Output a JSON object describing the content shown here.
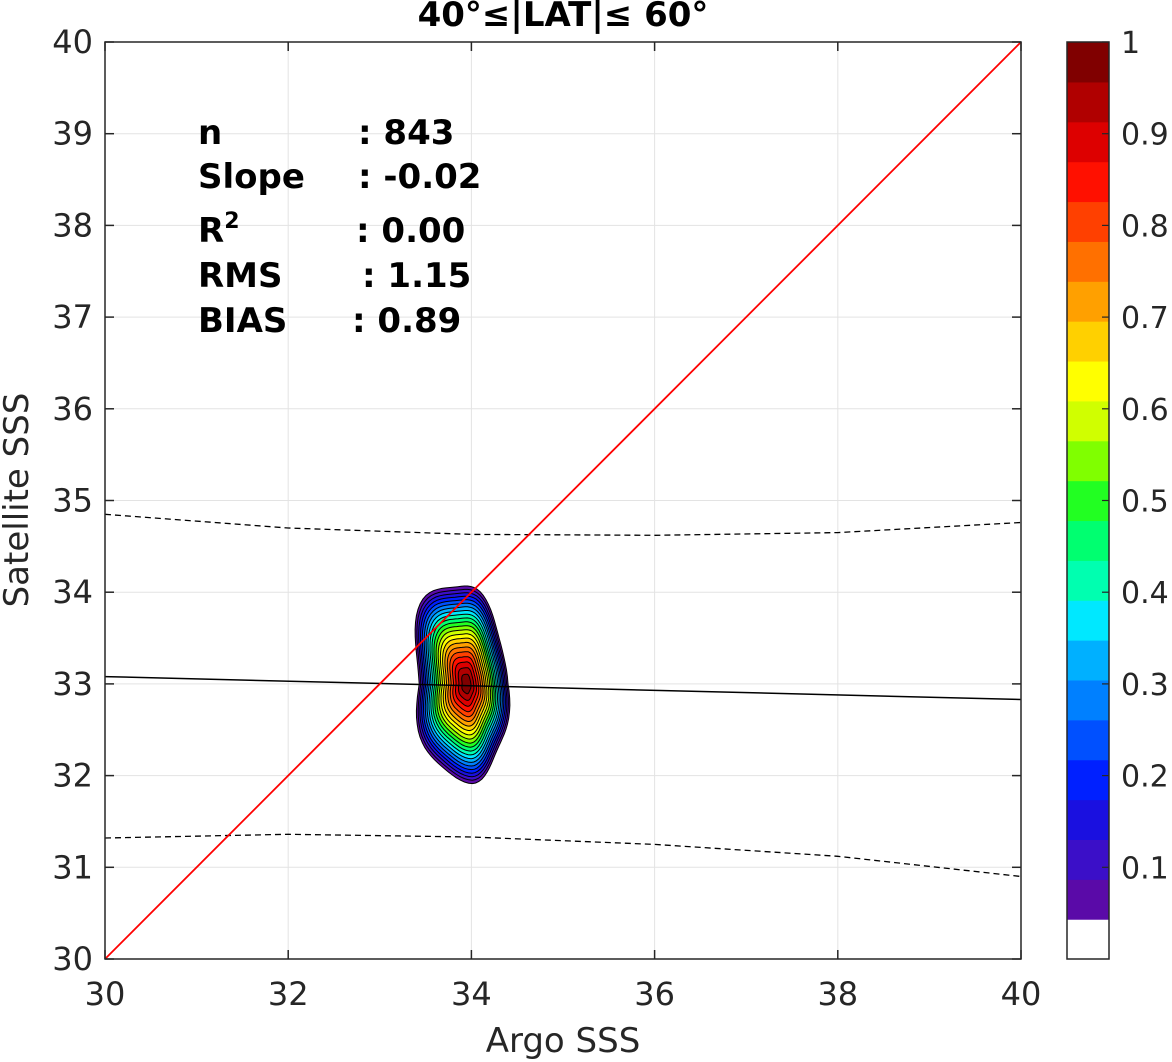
{
  "chart_data": {
    "type": "scatter-density-contour",
    "title": "40°≤|LAT|≤ 60°",
    "xlabel": "Argo SSS",
    "ylabel": "Satellite SSS",
    "xlim": [
      30,
      40
    ],
    "ylim": [
      30,
      40
    ],
    "xticks": [
      "30",
      "32",
      "34",
      "36",
      "38",
      "40"
    ],
    "yticks": [
      "30",
      "31",
      "32",
      "33",
      "34",
      "35",
      "36",
      "37",
      "38",
      "39",
      "40"
    ],
    "grid": true,
    "stats": [
      {
        "label": "n",
        "sep": ":",
        "value": "843"
      },
      {
        "label": "Slope",
        "sep": ":",
        "value": "-0.02"
      },
      {
        "label": "R",
        "sup": "2",
        "sep": ":",
        "value": "0.00"
      },
      {
        "label": "RMS",
        "sep": ":",
        "value": "1.15"
      },
      {
        "label": "BIAS",
        "sep": ":",
        "value": "0.89"
      }
    ],
    "one_to_one_line": {
      "color": "#ff0000",
      "x": [
        30,
        40
      ],
      "y": [
        30,
        40
      ]
    },
    "regression_line": {
      "color": "#000000",
      "x": [
        30,
        40
      ],
      "y": [
        33.08,
        32.83
      ]
    },
    "confidence_upper": {
      "x": [
        30,
        32,
        34,
        36,
        38,
        40
      ],
      "y": [
        34.85,
        34.7,
        34.63,
        34.62,
        34.65,
        34.76
      ]
    },
    "confidence_lower": {
      "x": [
        30,
        32,
        34,
        36,
        38,
        40
      ],
      "y": [
        31.32,
        31.36,
        31.33,
        31.25,
        31.12,
        30.9
      ]
    },
    "density": {
      "center_x": 33.95,
      "center_y": 33.0,
      "peak": 1.0,
      "extent_x": [
        33.3,
        34.45
      ],
      "extent_y": [
        31.95,
        34.1
      ]
    },
    "colorbar": {
      "ticks": [
        "0.1",
        "0.2",
        "0.3",
        "0.4",
        "0.5",
        "0.6",
        "0.7",
        "0.8",
        "0.9",
        "1"
      ],
      "range": [
        0,
        1
      ],
      "colors": [
        "#ffffff",
        "#5a0aa8",
        "#3b0fc8",
        "#1a10e0",
        "#0020ff",
        "#0050ff",
        "#0080ff",
        "#00b0ff",
        "#00e8ff",
        "#00ffb0",
        "#00ff70",
        "#22ff22",
        "#80ff00",
        "#d0ff00",
        "#ffff00",
        "#ffd000",
        "#ffa000",
        "#ff7000",
        "#ff4000",
        "#ff1000",
        "#dd0000",
        "#b00000",
        "#800000"
      ]
    }
  }
}
